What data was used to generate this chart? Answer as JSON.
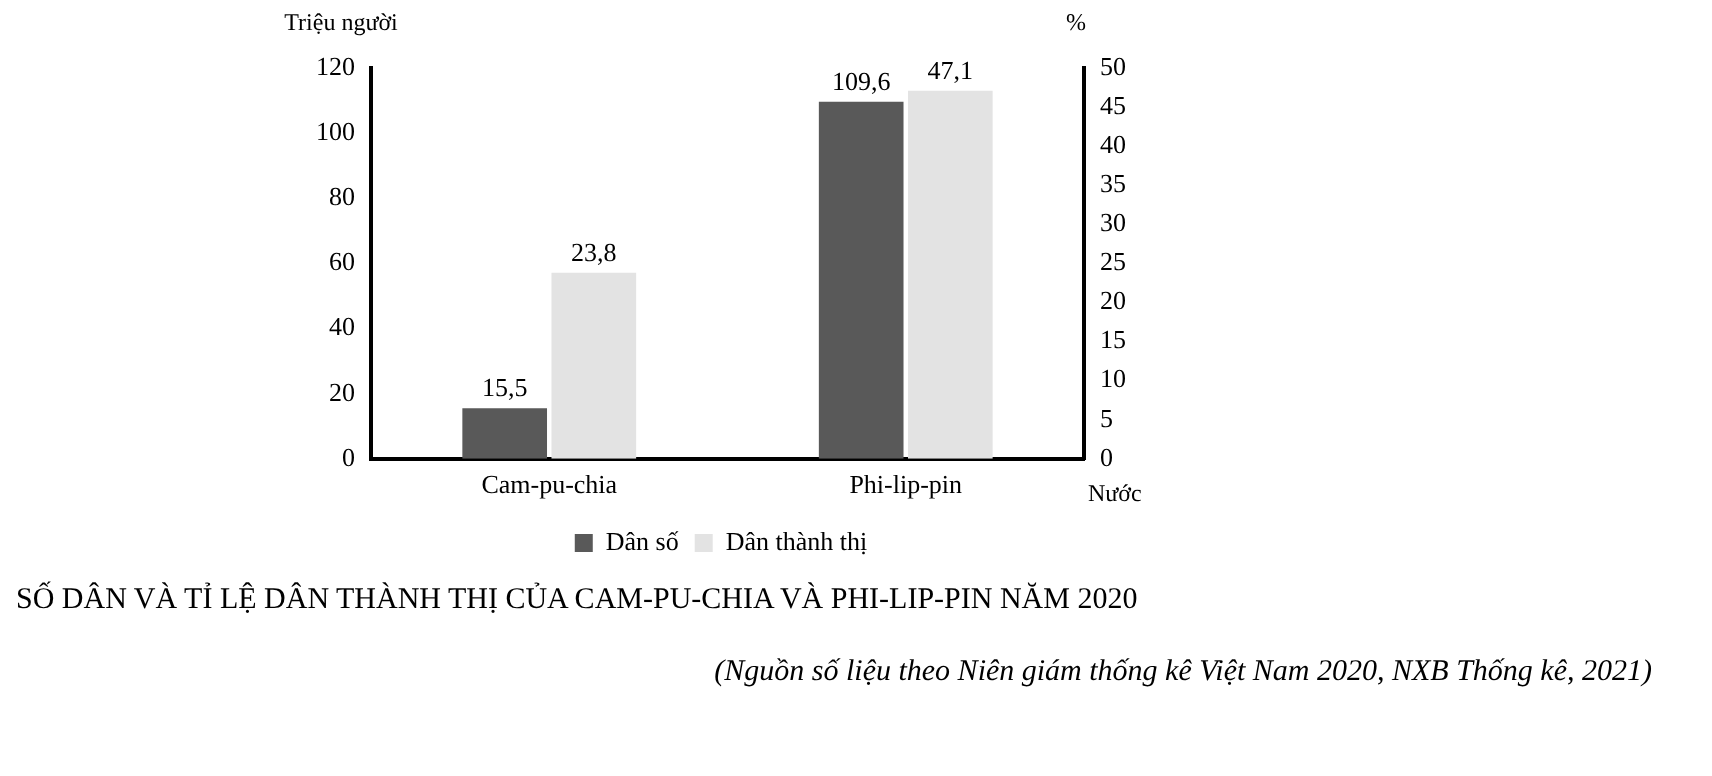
{
  "chart_data": {
    "type": "bar",
    "title": "SỐ DÂN VÀ TỈ LỆ DÂN THÀNH THỊ CỦA CAM-PU-CHIA VÀ PHI-LIP-PIN NĂM 2020",
    "xlabel": "Nước",
    "ylabel": "Triệu người",
    "y2label": "%",
    "categories": [
      "Cam-pu-chia",
      "Phi-lip-pin"
    ],
    "series": [
      {
        "name": "Dân số",
        "color": "#595959",
        "values": [
          15.5,
          109.6
        ],
        "value_labels": [
          "15,5",
          "109,6"
        ]
      },
      {
        "name": "Dân thành thị",
        "color": "#e3e3e3",
        "axis": "y2",
        "values": [
          23.8,
          47.1
        ],
        "value_labels": [
          "23,8",
          "47,1"
        ]
      }
    ],
    "ylim": [
      0,
      120
    ],
    "yticks": [
      0,
      20,
      40,
      60,
      80,
      100,
      120
    ],
    "y2lim": [
      0,
      50
    ],
    "y2ticks": [
      0,
      5,
      10,
      15,
      20,
      25,
      30,
      35,
      40,
      45,
      50
    ],
    "grid": false,
    "legend": "bottom",
    "annotations": [
      "(Nguồn số liệu theo Niên giám thống kê Việt Nam 2020, NXB Thống kê, 2021)"
    ]
  }
}
